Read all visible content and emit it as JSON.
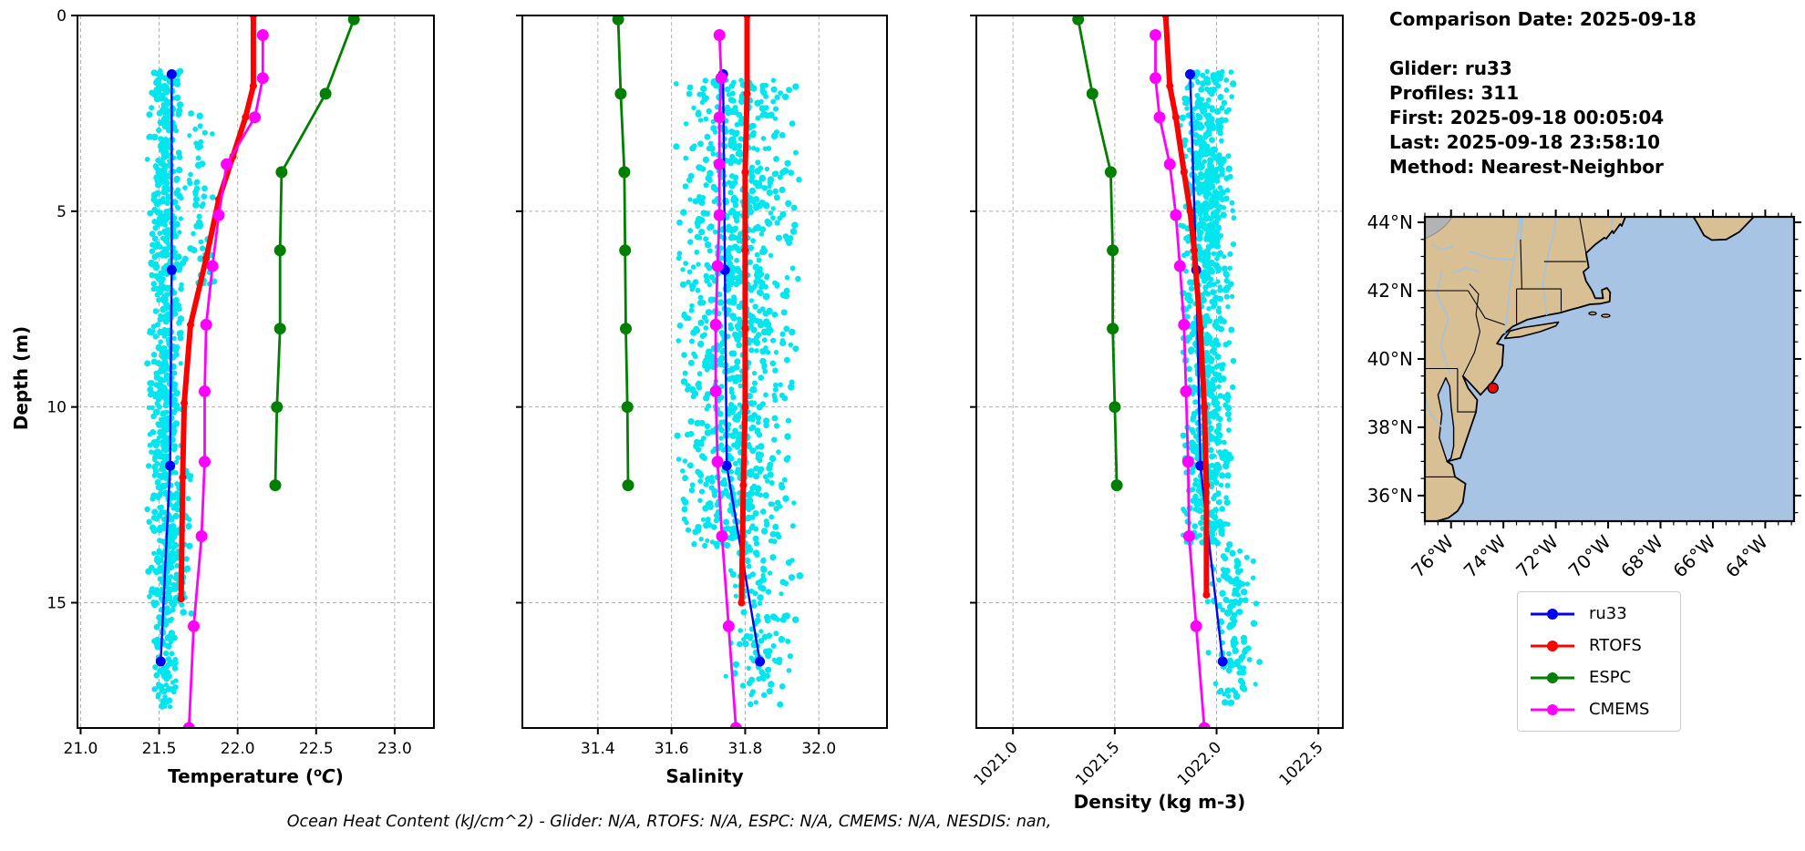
{
  "header": {
    "comparison_date": "Comparison Date: 2025-09-18",
    "info_lines": [
      "Glider: ru33",
      "Profiles: 311",
      "First: 2025-09-18 00:05:04",
      "Last: 2025-09-18 23:58:10",
      "Method: Nearest-Neighbor"
    ]
  },
  "footer": {
    "note": "Ocean Heat Content (kJ/cm^2) - Glider: N/A,  RTOFS: N/A,  ESPC: N/A,  CMEMS: N/A,  NESDIS: nan,"
  },
  "legend": {
    "items": [
      {
        "label": "ru33",
        "color": "#0000f5"
      },
      {
        "label": "RTOFS",
        "color": "#ff0000"
      },
      {
        "label": "ESPC",
        "color": "#007f00"
      },
      {
        "label": "CMEMS",
        "color": "#ff00ff"
      }
    ]
  },
  "colors": {
    "glider_scatter": "#00e6ee",
    "grid": "#b0b0b0",
    "axis": "#000000"
  },
  "chart_data": [
    {
      "type": "scatter",
      "title": "",
      "ylabel": "Depth (m)",
      "ylim": [
        0,
        18.2
      ],
      "yticks": [
        0,
        5,
        10,
        15
      ],
      "ytick_labels": [
        "0",
        "5",
        "10",
        "15"
      ],
      "grid": true,
      "panels": [
        {
          "id": "temperature",
          "xlabel": "Temperature (°C)",
          "xlabel_rich": {
            "pre": "Temperature (",
            "sup": "o",
            "it": "C",
            "post": ")"
          },
          "xlim": [
            20.98,
            23.25
          ],
          "xticks": [
            21.0,
            21.5,
            22.0,
            22.5,
            23.0
          ],
          "xtick_labels": [
            "21.0",
            "21.5",
            "22.0",
            "22.5",
            "23.0"
          ],
          "xtick_rotation": 0,
          "series": {
            "ru33": [
              [
                21.58,
                1.5
              ],
              [
                21.58,
                6.5
              ],
              [
                21.57,
                11.5
              ],
              [
                21.51,
                16.5
              ]
            ],
            "RTOFS": [
              [
                22.1,
                0.0
              ],
              [
                22.1,
                1.8
              ],
              [
                22.05,
                2.6
              ],
              [
                21.97,
                3.6
              ],
              [
                21.88,
                4.7
              ],
              [
                21.8,
                6.2
              ],
              [
                21.7,
                7.9
              ],
              [
                21.66,
                9.9
              ],
              [
                21.65,
                11.8
              ],
              [
                21.64,
                14.9
              ]
            ],
            "ESPC": [
              [
                22.74,
                0.1
              ],
              [
                22.56,
                2.0
              ],
              [
                22.28,
                4.0
              ],
              [
                22.27,
                6.0
              ],
              [
                22.27,
                8.0
              ],
              [
                22.25,
                10.0
              ],
              [
                22.24,
                12.0
              ]
            ],
            "CMEMS": [
              [
                22.16,
                0.5
              ],
              [
                22.16,
                1.6
              ],
              [
                22.11,
                2.6
              ],
              [
                21.93,
                3.8
              ],
              [
                21.88,
                5.1
              ],
              [
                21.84,
                6.4
              ],
              [
                21.8,
                7.9
              ],
              [
                21.79,
                9.6
              ],
              [
                21.79,
                11.4
              ],
              [
                21.77,
                13.3
              ],
              [
                21.72,
                15.6
              ],
              [
                21.69,
                18.2
              ]
            ]
          },
          "glider_scatter_bands": [
            {
              "x": [
                21.42,
                21.66
              ],
              "depth": [
                1.4,
                15.2
              ],
              "n": 760
            },
            {
              "x": [
                21.46,
                21.62
              ],
              "depth": [
                15.2,
                17.7
              ],
              "n": 80
            },
            {
              "x": [
                21.64,
                21.86
              ],
              "depth": [
                2.4,
                7.0
              ],
              "n": 55
            },
            {
              "x": [
                21.62,
                21.72
              ],
              "depth": [
                11.5,
                15.5
              ],
              "n": 25
            }
          ]
        },
        {
          "id": "salinity",
          "xlabel": "Salinity",
          "xlim": [
            31.195,
            32.185
          ],
          "xticks": [
            31.4,
            31.6,
            31.8,
            32.0
          ],
          "xtick_labels": [
            "31.4",
            "31.6",
            "31.8",
            "32.0"
          ],
          "xtick_rotation": 0,
          "series": {
            "ru33": [
              [
                31.74,
                1.5
              ],
              [
                31.745,
                6.5
              ],
              [
                31.75,
                11.5
              ],
              [
                31.84,
                16.5
              ]
            ],
            "RTOFS": [
              [
                31.805,
                0.0
              ],
              [
                31.805,
                2.0
              ],
              [
                31.8,
                4.0
              ],
              [
                31.8,
                6.0
              ],
              [
                31.8,
                8.0
              ],
              [
                31.8,
                10.0
              ],
              [
                31.795,
                12.0
              ],
              [
                31.79,
                15.0
              ]
            ],
            "ESPC": [
              [
                31.455,
                0.1
              ],
              [
                31.462,
                2.0
              ],
              [
                31.472,
                4.0
              ],
              [
                31.474,
                6.0
              ],
              [
                31.476,
                8.0
              ],
              [
                31.48,
                10.0
              ],
              [
                31.482,
                12.0
              ]
            ],
            "CMEMS": [
              [
                31.73,
                0.5
              ],
              [
                31.735,
                1.6
              ],
              [
                31.73,
                2.6
              ],
              [
                31.73,
                3.8
              ],
              [
                31.73,
                5.1
              ],
              [
                31.725,
                6.4
              ],
              [
                31.72,
                7.9
              ],
              [
                31.72,
                9.6
              ],
              [
                31.725,
                11.4
              ],
              [
                31.737,
                13.3
              ],
              [
                31.755,
                15.6
              ],
              [
                31.775,
                18.2
              ]
            ]
          },
          "glider_scatter_bands": [
            {
              "x": [
                31.6,
                31.95
              ],
              "depth": [
                1.6,
                13.6
              ],
              "n": 1000
            },
            {
              "x": [
                31.72,
                31.96
              ],
              "depth": [
                13.6,
                17.6
              ],
              "n": 120
            }
          ]
        },
        {
          "id": "density",
          "xlabel": "Density (kg m-3)",
          "xlim": [
            1020.82,
            1022.62
          ],
          "xticks": [
            1021.0,
            1021.5,
            1022.0,
            1022.5
          ],
          "xtick_labels": [
            "1021.0",
            "1021.5",
            "1022.0",
            "1022.5"
          ],
          "xtick_rotation": 45,
          "series": {
            "ru33": [
              [
                1021.87,
                1.5
              ],
              [
                1021.9,
                6.5
              ],
              [
                1021.92,
                11.5
              ],
              [
                1022.03,
                16.5
              ]
            ],
            "RTOFS": [
              [
                1021.75,
                0.0
              ],
              [
                1021.77,
                1.8
              ],
              [
                1021.8,
                2.6
              ],
              [
                1021.84,
                4.0
              ],
              [
                1021.87,
                5.0
              ],
              [
                1021.89,
                6.0
              ],
              [
                1021.92,
                8.0
              ],
              [
                1021.94,
                10.0
              ],
              [
                1021.95,
                12.0
              ],
              [
                1021.95,
                14.8
              ]
            ],
            "ESPC": [
              [
                1021.32,
                0.1
              ],
              [
                1021.39,
                2.0
              ],
              [
                1021.48,
                4.0
              ],
              [
                1021.49,
                6.0
              ],
              [
                1021.49,
                8.0
              ],
              [
                1021.5,
                10.0
              ],
              [
                1021.51,
                12.0
              ]
            ],
            "CMEMS": [
              [
                1021.7,
                0.5
              ],
              [
                1021.7,
                1.6
              ],
              [
                1021.72,
                2.6
              ],
              [
                1021.77,
                3.8
              ],
              [
                1021.8,
                5.1
              ],
              [
                1021.82,
                6.4
              ],
              [
                1021.84,
                7.9
              ],
              [
                1021.85,
                9.6
              ],
              [
                1021.86,
                11.4
              ],
              [
                1021.865,
                13.3
              ],
              [
                1021.9,
                15.6
              ],
              [
                1021.94,
                18.2
              ]
            ]
          },
          "glider_scatter_bands": [
            {
              "x": [
                1021.82,
                1022.09
              ],
              "depth": [
                1.4,
                13.5
              ],
              "n": 850
            },
            {
              "x": [
                1021.95,
                1022.22
              ],
              "depth": [
                13.5,
                17.6
              ],
              "n": 130
            }
          ]
        }
      ]
    },
    {
      "type": "map",
      "extent": {
        "lon": [
          -77.0,
          -62.9
        ],
        "lat": [
          35.25,
          44.16
        ]
      },
      "xtick_lons": [
        -76,
        -74,
        -72,
        -70,
        -68,
        -66,
        -64
      ],
      "xtick_labels": [
        "76°W",
        "74°W",
        "72°W",
        "70°W",
        "68°W",
        "66°W",
        "64°W"
      ],
      "ytick_lats": [
        44,
        42,
        40,
        38,
        36
      ],
      "ytick_labels": [
        "44°N",
        "42°N",
        "40°N",
        "38°N",
        "36°N"
      ],
      "glider_marker": {
        "lon": -74.4,
        "lat": 39.15,
        "color": "#ff0000"
      },
      "land_color": "#d8bf94",
      "ocean_color": "#a8c4e4",
      "river_color": "#9dc3e6",
      "border_color": "#000000"
    }
  ]
}
